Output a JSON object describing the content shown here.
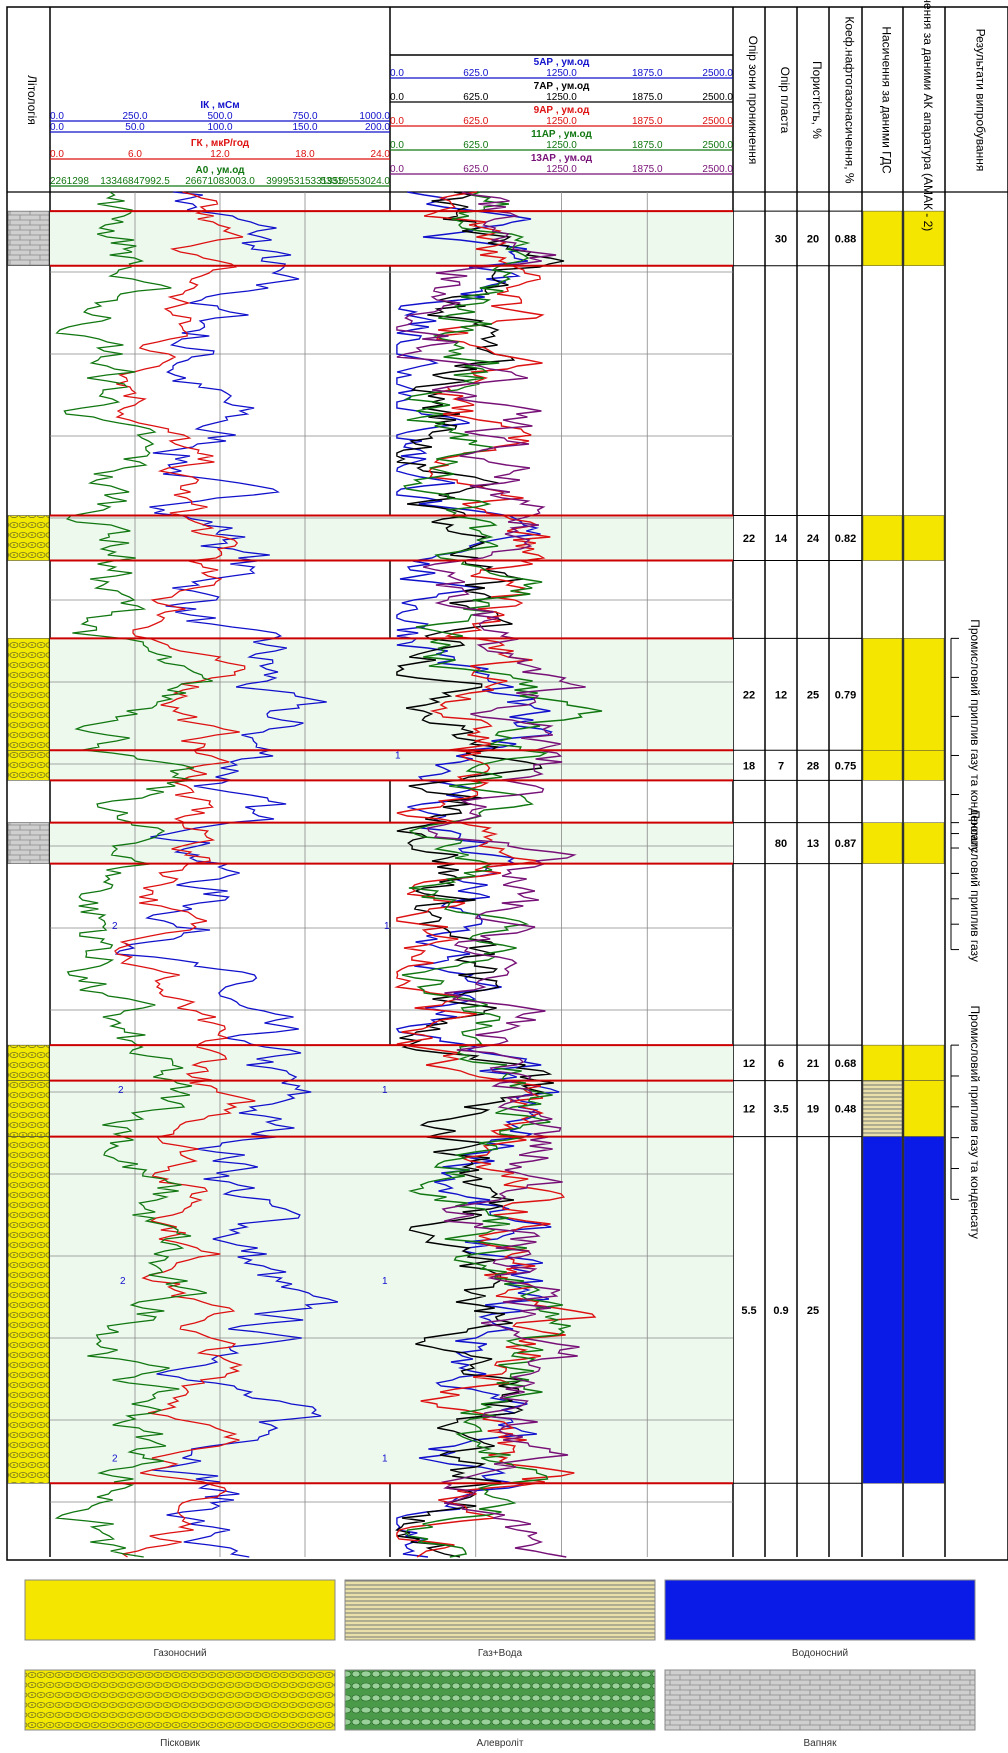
{
  "headers": {
    "lithology": "Літологія",
    "penetration_resistivity": "Опір зони проникнення",
    "formation_resistivity": "Опір пласта",
    "porosity": "Пористість, %",
    "saturation_coef": "Коеф.нафтогазонасичення, %",
    "gds_saturation": "Насичення за даними ГДС",
    "ak_saturation": "Насичення за даними АК апаратура (АМАК - 2)",
    "test_results": "Результати випробування"
  },
  "colors": {
    "gas": "#f5e600",
    "water": "#0a1be8",
    "red_line": "#cc0000",
    "zone_fill": "#eef9ee",
    "grid": "#888888"
  },
  "left_track": {
    "curves": [
      {
        "name": "ІК , мСм",
        "color": "#1111cc",
        "scales": [
          [
            "0.0",
            "250.0",
            "500.0",
            "750.0",
            "1000.0"
          ],
          [
            "0.0",
            "50.0",
            "100.0",
            "150.0",
            "200.0"
          ]
        ]
      },
      {
        "name": "ГК , мкР/год",
        "color": "#dd1111",
        "scales": [
          [
            "0.0",
            "6.0",
            "12.0",
            "18.0",
            "24.0"
          ]
        ]
      },
      {
        "name": "А0 , ум.од",
        "color": "#117711",
        "scales": [
          [
            "2261298",
            "13346847992.5",
            "26671083003.0",
            "39995315331955",
            "53319553024.0"
          ]
        ]
      }
    ]
  },
  "right_track": {
    "curves": [
      {
        "name": "5АР , ум.од",
        "color": "#1111cc",
        "scale": [
          "0.0",
          "625.0",
          "1250.0",
          "1875.0",
          "2500.0"
        ]
      },
      {
        "name": "7АР , ум.од",
        "color": "#000000",
        "scale": [
          "0.0",
          "625.0",
          "1250.0",
          "1875.0",
          "2500.0"
        ]
      },
      {
        "name": "9АР , ум.од",
        "color": "#dd1111",
        "scale": [
          "0.0",
          "625.0",
          "1250.0",
          "1875.0",
          "2500.0"
        ]
      },
      {
        "name": "11АР , ум.од",
        "color": "#117711",
        "scale": [
          "0.0",
          "625.0",
          "1250.0",
          "1875.0",
          "2500.0"
        ]
      },
      {
        "name": "13АР , ум.од",
        "color": "#771177",
        "scale": [
          "0.0",
          "625.0",
          "1250.0",
          "1875.0",
          "2500.0"
        ]
      }
    ]
  },
  "layers": [
    {
      "lith": "limestone",
      "top_frac": 0.014,
      "bot_frac": 0.054,
      "pen": "",
      "res": "30",
      "por": "20",
      "coef": "0.88",
      "gds": "gas",
      "ak": "gas"
    },
    {
      "lith": "sandstone",
      "top_frac": 0.237,
      "bot_frac": 0.27,
      "pen": "22",
      "res": "14",
      "por": "24",
      "coef": "0.82",
      "gds": "gas",
      "ak": "gas"
    },
    {
      "lith": "sandstone",
      "top_frac": 0.327,
      "bot_frac": 0.409,
      "pen": "22",
      "res": "12",
      "por": "25",
      "coef": "0.79",
      "gds": "gas",
      "ak": "gas"
    },
    {
      "lith": "sandstone",
      "top_frac": 0.409,
      "bot_frac": 0.431,
      "pen": "18",
      "res": "7",
      "por": "28",
      "coef": "0.75",
      "gds": "gas",
      "ak": "gas"
    },
    {
      "lith": "limestone",
      "top_frac": 0.462,
      "bot_frac": 0.492,
      "pen": "",
      "res": "80",
      "por": "13",
      "coef": "0.87",
      "gds": "gas",
      "ak": "gas"
    },
    {
      "lith": "sandstone",
      "top_frac": 0.625,
      "bot_frac": 0.651,
      "pen": "12",
      "res": "6",
      "por": "21",
      "coef": "0.68",
      "gds": "gas",
      "ak": "gas"
    },
    {
      "lith": "sandstone",
      "top_frac": 0.651,
      "bot_frac": 0.692,
      "pen": "12",
      "res": "3.5",
      "por": "19",
      "coef": "0.48",
      "gds": "mix",
      "ak": "gas"
    },
    {
      "lith": "sandstone",
      "top_frac": 0.692,
      "bot_frac": 0.946,
      "pen": "5.5",
      "res": "0.9",
      "por": "25",
      "coef": "",
      "gds": "water",
      "ak": "water"
    }
  ],
  "test_annotations": [
    {
      "text": "Промисловий приплив газу та конденсату",
      "top_frac": 0.327,
      "bot_frac": 0.47
    },
    {
      "text": "Промисловий приплив газу",
      "top_frac": 0.462,
      "bot_frac": 0.555
    },
    {
      "text": "Промисловий приплив газу та конденсату",
      "top_frac": 0.625,
      "bot_frac": 0.738
    }
  ],
  "legend": {
    "items": [
      {
        "label": "Газоносний",
        "pattern": "gas"
      },
      {
        "label": "Газ+Вода",
        "pattern": "mix"
      },
      {
        "label": "Водоносний",
        "pattern": "water"
      },
      {
        "label": "Пісковик",
        "pattern": "sandstone"
      },
      {
        "label": "Алевроліт",
        "pattern": "siltstone"
      },
      {
        "label": "Вапняк",
        "pattern": "limestone"
      }
    ]
  },
  "curve_markers": {
    "one": "1",
    "two": "2"
  }
}
